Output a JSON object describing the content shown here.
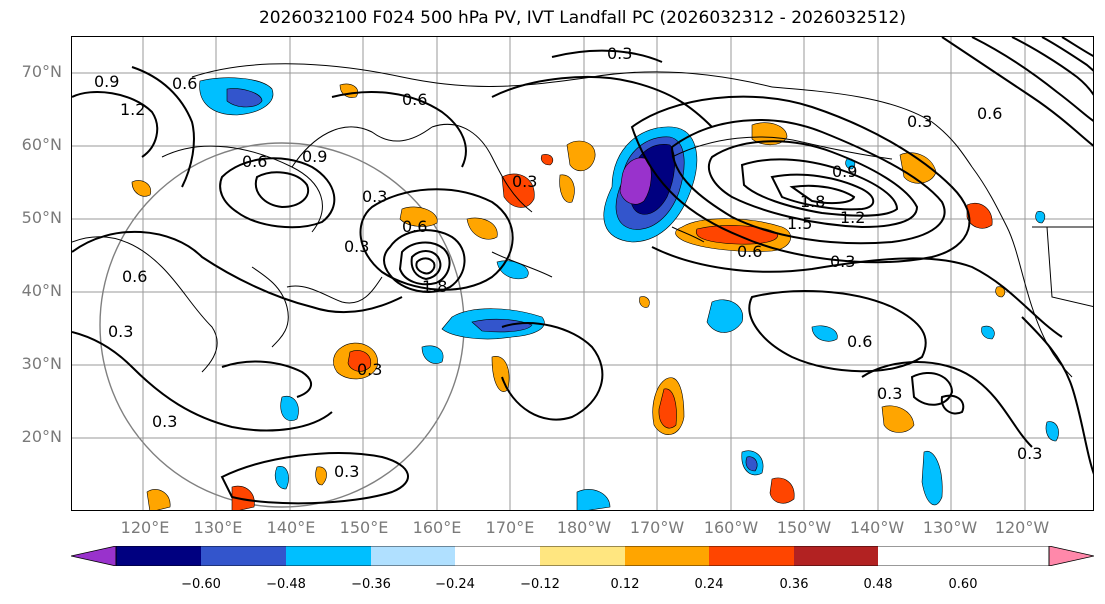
{
  "title": "2026032100 F024 500 hPa PV, IVT Landfall PC (2026032312 - 2026032512)",
  "lat_labels": [
    "70°N",
    "60°N",
    "50°N",
    "40°N",
    "30°N",
    "20°N"
  ],
  "lon_labels": [
    "120°E",
    "130°E",
    "140°E",
    "150°E",
    "160°E",
    "170°E",
    "180°W",
    "170°W",
    "160°W",
    "150°W",
    "140°W",
    "130°W",
    "120°W"
  ],
  "contour_labels": [
    "0.3",
    "0.6",
    "0.9",
    "1.2",
    "1.5",
    "1.8"
  ],
  "colorbar": {
    "ticks": [
      "−0.60",
      "−0.48",
      "−0.36",
      "−0.24",
      "−0.12",
      "0.12",
      "0.24",
      "0.36",
      "0.48",
      "0.60"
    ],
    "colors": [
      "#9932cc",
      "#000080",
      "#3355cc",
      "#00bfff",
      "#b0e0ff",
      "#ffffff",
      "#ffe680",
      "#ffa500",
      "#ff4500",
      "#b22222",
      "#ff88aa"
    ]
  }
}
